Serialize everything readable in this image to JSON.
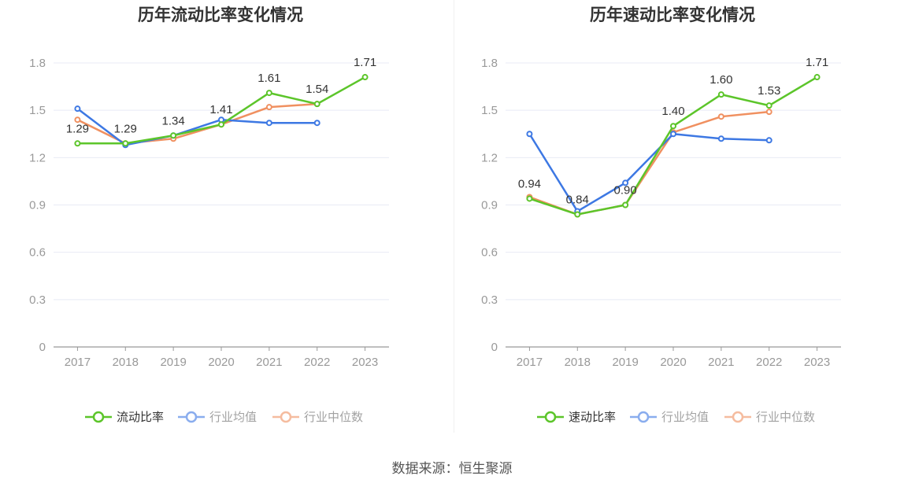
{
  "colors": {
    "main": "#5cc52a",
    "avg": "#3d78e3",
    "median": "#f09060",
    "grid": "#e8ebf5",
    "axis": "#999999"
  },
  "chart_data": [
    {
      "type": "line",
      "title": "历年流动比率变化情况",
      "categories": [
        "2017",
        "2018",
        "2019",
        "2020",
        "2021",
        "2022",
        "2023"
      ],
      "ylim": [
        0,
        1.8
      ],
      "yticks": [
        "0",
        "0.3",
        "0.6",
        "0.9",
        "1.2",
        "1.5",
        "1.8"
      ],
      "grid": true,
      "legend_position": "bottom",
      "series": [
        {
          "name": "流动比率",
          "color": "#5cc52a",
          "values": [
            1.29,
            1.29,
            1.34,
            1.41,
            1.61,
            1.54,
            1.71
          ],
          "labels": [
            "1.29",
            "1.29",
            "1.34",
            "1.41",
            "1.61",
            "1.54",
            "1.71"
          ]
        },
        {
          "name": "行业均值",
          "color": "#3d78e3",
          "values": [
            1.51,
            1.28,
            1.34,
            1.44,
            1.42,
            1.42,
            null
          ]
        },
        {
          "name": "行业中位数",
          "color": "#f09060",
          "values": [
            1.44,
            1.29,
            1.32,
            1.41,
            1.52,
            1.54,
            null
          ]
        }
      ]
    },
    {
      "type": "line",
      "title": "历年速动比率变化情况",
      "categories": [
        "2017",
        "2018",
        "2019",
        "2020",
        "2021",
        "2022",
        "2023"
      ],
      "ylim": [
        0,
        1.8
      ],
      "yticks": [
        "0",
        "0.3",
        "0.6",
        "0.9",
        "1.2",
        "1.5",
        "1.8"
      ],
      "grid": true,
      "legend_position": "bottom",
      "series": [
        {
          "name": "速动比率",
          "color": "#5cc52a",
          "values": [
            0.94,
            0.84,
            0.9,
            1.4,
            1.6,
            1.53,
            1.71
          ],
          "labels": [
            "0.94",
            "0.84",
            "0.90",
            "1.40",
            "1.60",
            "1.53",
            "1.71"
          ]
        },
        {
          "name": "行业均值",
          "color": "#3d78e3",
          "values": [
            1.35,
            0.86,
            1.04,
            1.35,
            1.32,
            1.31,
            null
          ]
        },
        {
          "name": "行业中位数",
          "color": "#f09060",
          "values": [
            0.95,
            0.84,
            0.9,
            1.36,
            1.46,
            1.49,
            null
          ]
        }
      ]
    }
  ],
  "source": "数据来源：恒生聚源"
}
